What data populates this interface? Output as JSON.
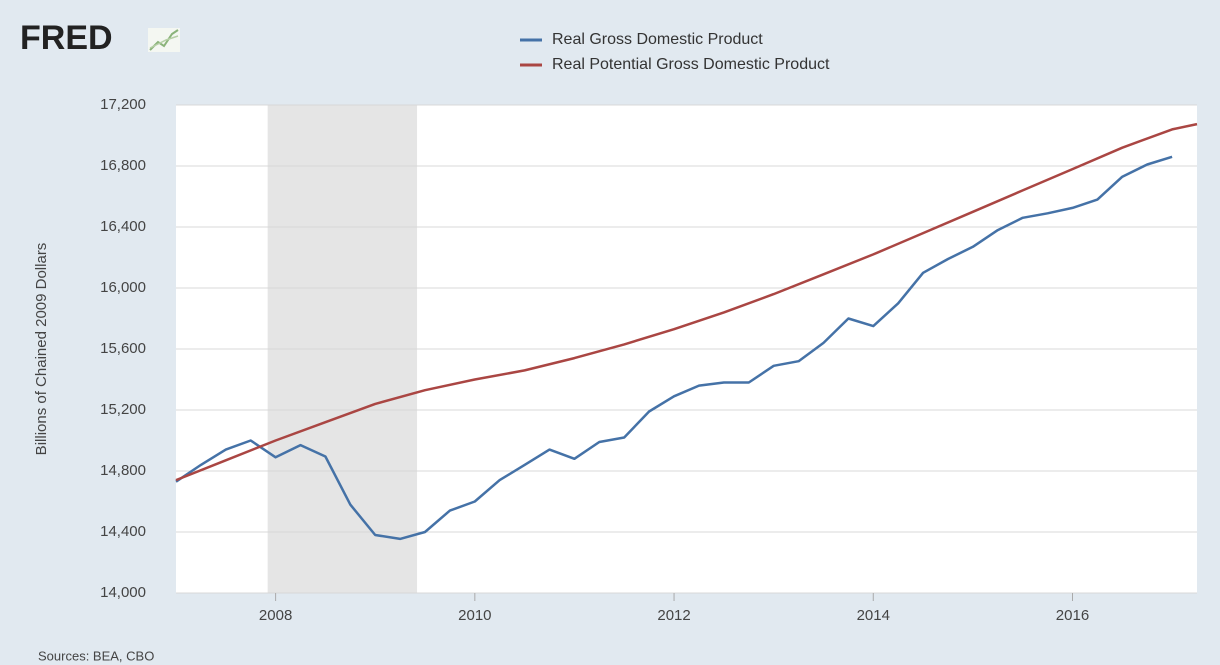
{
  "logo": "FRED",
  "chart_data": {
    "type": "line",
    "y_label": "Billions of Chained 2009 Dollars",
    "source": "Sources: BEA, CBO",
    "xlim": [
      2007,
      2017.25
    ],
    "xticks": [
      2008,
      2010,
      2012,
      2014,
      2016
    ],
    "ylim": [
      14000,
      17200
    ],
    "yticks": [
      {
        "value": 14000,
        "label": "14,000"
      },
      {
        "value": 14400,
        "label": "14,400"
      },
      {
        "value": 14800,
        "label": "14,800"
      },
      {
        "value": 15200,
        "label": "15,200"
      },
      {
        "value": 15600,
        "label": "15,600"
      },
      {
        "value": 16000,
        "label": "16,000"
      },
      {
        "value": 16400,
        "label": "16,400"
      },
      {
        "value": 16800,
        "label": "16,800"
      },
      {
        "value": 17200,
        "label": "17,200"
      }
    ],
    "grid": true,
    "shaded_periods": [
      [
        2007.92,
        2009.42
      ]
    ],
    "series": [
      {
        "name": "Real Gross Domestic Product",
        "color": "#4572a7",
        "x": [
          2007,
          2007.25,
          2007.5,
          2007.75,
          2008,
          2008.25,
          2008.5,
          2008.75,
          2009,
          2009.25,
          2009.5,
          2009.75,
          2010,
          2010.25,
          2010.5,
          2010.75,
          2011,
          2011.25,
          2011.5,
          2011.75,
          2012,
          2012.25,
          2012.5,
          2012.75,
          2013,
          2013.25,
          2013.5,
          2013.75,
          2014,
          2014.25,
          2014.5,
          2014.75,
          2015,
          2015.25,
          2015.5,
          2015.75,
          2016,
          2016.25,
          2016.5,
          2016.75,
          2017
        ],
        "values": [
          14730,
          14840,
          14940,
          15000,
          14890,
          14970,
          14895,
          14580,
          14380,
          14355,
          14400,
          14540,
          14600,
          14740,
          14840,
          14940,
          14880,
          14990,
          15020,
          15190,
          15290,
          15360,
          15380,
          15380,
          15490,
          15520,
          15640,
          15800,
          15750,
          15900,
          16100,
          16190,
          16270,
          16380,
          16460,
          16490,
          16525,
          16580,
          16730,
          16810,
          16860
        ]
      },
      {
        "name": "Real Potential Gross Domestic Product",
        "color": "#aa4643",
        "x": [
          2007,
          2007.5,
          2008,
          2008.5,
          2009,
          2009.5,
          2010,
          2010.5,
          2011,
          2011.5,
          2012,
          2012.5,
          2013,
          2013.5,
          2014,
          2014.5,
          2015,
          2015.5,
          2016,
          2016.5,
          2017,
          2017.25
        ],
        "values": [
          14740,
          14870,
          15000,
          15120,
          15240,
          15330,
          15400,
          15460,
          15540,
          15630,
          15730,
          15840,
          15960,
          16090,
          16220,
          16360,
          16500,
          16640,
          16780,
          16920,
          17040,
          17075
        ]
      }
    ]
  }
}
